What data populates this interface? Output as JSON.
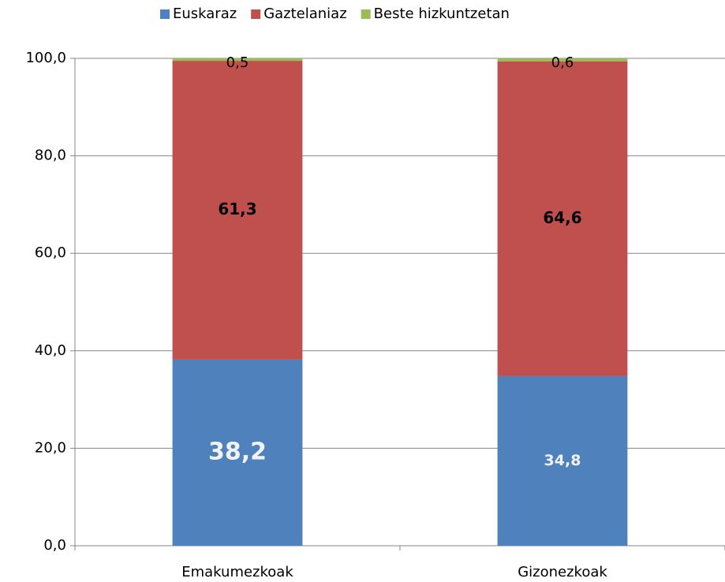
{
  "chart_data": {
    "type": "stacked_bar",
    "categories": [
      "Emakumezkoak",
      "Gizonezkoak"
    ],
    "series": [
      {
        "name": "Euskaraz",
        "color": "#4f81bd",
        "values": [
          38.2,
          34.8
        ],
        "value_labels": [
          "38,2",
          "34,8"
        ]
      },
      {
        "name": "Gaztelaniaz",
        "color": "#c0504d",
        "values": [
          61.3,
          64.6
        ],
        "value_labels": [
          "61,3",
          "64,6"
        ]
      },
      {
        "name": "Beste hizkuntzetan",
        "color": "#9bbb59",
        "values": [
          0.5,
          0.6
        ],
        "value_labels": [
          "0,5",
          "0,6"
        ]
      }
    ],
    "ylim": [
      0,
      100
    ],
    "yticks": [
      {
        "value": 0,
        "label": "0,0"
      },
      {
        "value": 20,
        "label": "20,0"
      },
      {
        "value": 40,
        "label": "40,0"
      },
      {
        "value": 60,
        "label": "60,0"
      },
      {
        "value": 80,
        "label": "80,0"
      },
      {
        "value": 100,
        "label": "100,0"
      }
    ],
    "grid": true,
    "legend": "top"
  }
}
